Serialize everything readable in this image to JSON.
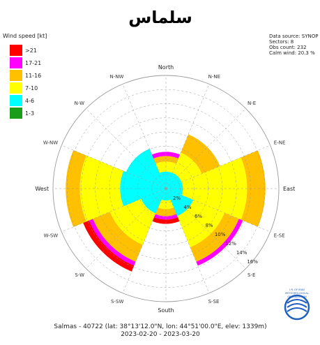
{
  "title": "سلماس",
  "info": {
    "lines": [
      "Data source: SYNOP",
      "Sectors: 8",
      "Obs count: 232",
      "Calm wind: 20.3 %"
    ]
  },
  "legend": {
    "title": "Wind speed [kt]",
    "items": [
      {
        "label": ">21",
        "color": "#ff0000"
      },
      {
        "label": "17-21",
        "color": "#ff00ff"
      },
      {
        "label": "11-16",
        "color": "#ffc000"
      },
      {
        "label": "7-10",
        "color": "#ffff00"
      },
      {
        "label": "4-6",
        "color": "#00ffff"
      },
      {
        "label": "1-3",
        "color": "#1a9e1a"
      }
    ]
  },
  "directions": [
    "North",
    "N-NE",
    "N-E",
    "E-NE",
    "East",
    "E-SE",
    "S-E",
    "S-SE",
    "South",
    "S-SW",
    "S-W",
    "W-SW",
    "West",
    "W-NW",
    "N-W",
    "N-NW"
  ],
  "ring_labels": [
    "2%",
    "4%",
    "6%",
    "8%",
    "10%",
    "12%",
    "14%",
    "16%"
  ],
  "footer": {
    "line1": "Salmas - 40722 (lat: 38°13'12.0\"N, lon: 44°51'00.0\"E, elev: 1339m)",
    "line2": "2023-02-20 - 2023-03-20"
  },
  "logo_text": [
    "I.R. OF IRAN",
    "METEOROLOGICAL",
    "ORGANIZATION"
  ],
  "chart_data": {
    "type": "wind-rose",
    "sectors": [
      "North",
      "N-E",
      "East",
      "S-E",
      "South",
      "S-W",
      "West",
      "N-W"
    ],
    "speed_bins": [
      "1-3",
      "4-6",
      "7-10",
      "11-16",
      "17-21",
      ">21"
    ],
    "cumulative_percent": [
      {
        "sector": "North",
        "values": [
          0.0,
          2.4,
          3.8,
          4.6,
          5.2,
          5.2
        ]
      },
      {
        "sector": "N-E",
        "values": [
          0.0,
          2.4,
          5.5,
          8.3,
          8.3,
          8.3
        ]
      },
      {
        "sector": "East",
        "values": [
          0.0,
          2.4,
          11.5,
          14.1,
          14.1,
          14.1
        ]
      },
      {
        "sector": "S-E",
        "values": [
          0.0,
          4.2,
          9.0,
          11.2,
          11.8,
          11.8
        ]
      },
      {
        "sector": "South",
        "values": [
          0.0,
          1.7,
          2.9,
          3.9,
          4.4,
          5.0
        ]
      },
      {
        "sector": "S-W",
        "values": [
          0.0,
          3.8,
          8.6,
          11.2,
          11.8,
          12.7
        ]
      },
      {
        "sector": "West",
        "values": [
          0.0,
          6.5,
          12.2,
          14.2,
          14.2,
          14.2
        ]
      },
      {
        "sector": "N-W",
        "values": [
          0.0,
          6.1,
          6.1,
          6.1,
          6.1,
          6.1
        ]
      }
    ],
    "radial_max": 16,
    "calm_percent": 20.3,
    "obs_count": 232
  }
}
